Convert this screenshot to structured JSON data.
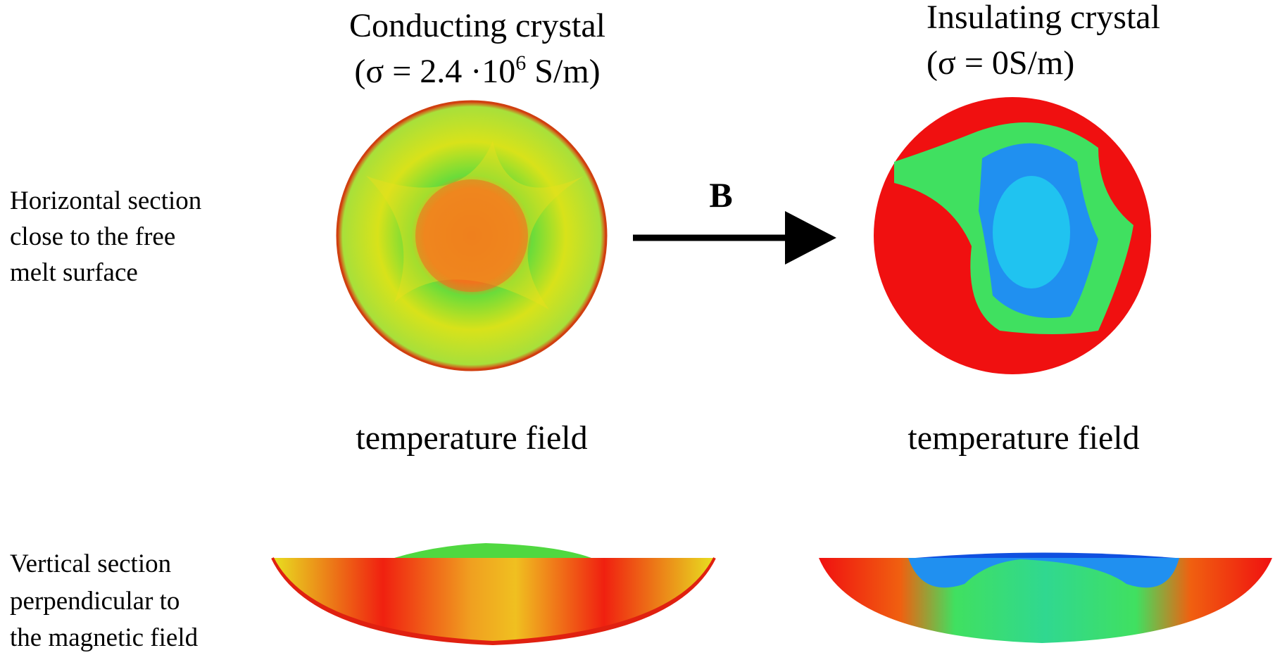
{
  "row_labels": [
    {
      "lines": [
        "Horizontal section",
        "close to the free",
        "melt surface"
      ]
    },
    {
      "lines": [
        "Vertical section",
        "perpendicular to",
        "the magnetic field"
      ]
    }
  ],
  "panels": [
    {
      "title": "Conducting crystal",
      "subtitle": {
        "prefix": "(σ = 2.4 ·10",
        "exponent": "6",
        "suffix": " S/m)"
      },
      "caption": "temperature field"
    },
    {
      "title": "Insulating crystal",
      "subtitle": {
        "prefix": "(σ = 0S/m)"
      },
      "caption": "temperature field"
    }
  ],
  "arrow_label": "B"
}
